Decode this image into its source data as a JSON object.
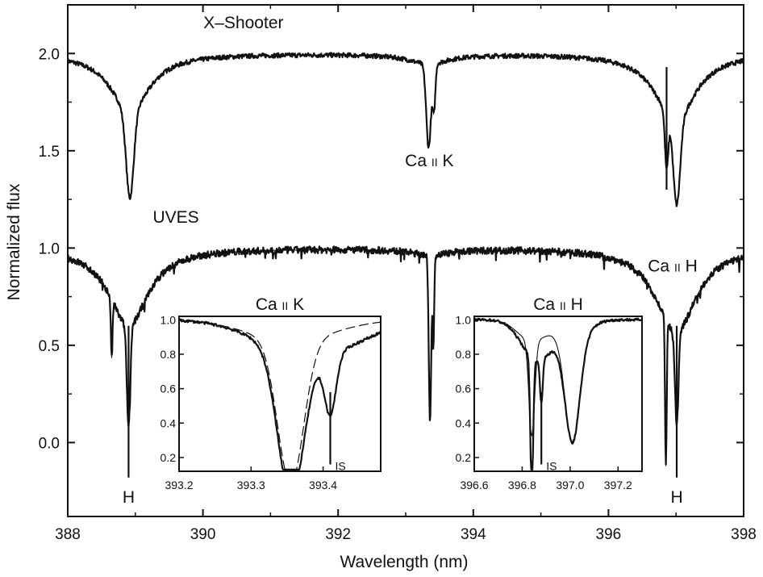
{
  "chart_data": {
    "type": "line",
    "xlabel": "Wavelength (nm)",
    "ylabel": "Normalized flux",
    "xlim": [
      388,
      398
    ],
    "ylim": [
      -0.38,
      2.25
    ],
    "xticks": [
      "388",
      "390",
      "392",
      "394",
      "396",
      "398"
    ],
    "yticks": [
      "0.0",
      "0.5",
      "1.0",
      "1.5",
      "2.0"
    ],
    "series": [
      {
        "name": "X–Shooter",
        "offset": 1.0,
        "noise": 0.012,
        "lines": [
          {
            "center": 388.92,
            "depth": 0.63,
            "width": 0.055,
            "wings": 0.3
          },
          {
            "center": 393.34,
            "depth": 0.45,
            "width": 0.035,
            "wings": 0.05
          },
          {
            "center": 393.42,
            "depth": 0.22,
            "width": 0.02,
            "wings": 0.0
          },
          {
            "center": 396.86,
            "depth": 0.3,
            "width": 0.025,
            "wings": 0.05
          },
          {
            "center": 397.01,
            "depth": 0.62,
            "width": 0.05,
            "wings": 0.3
          }
        ]
      },
      {
        "name": "UVES",
        "offset": 0.0,
        "noise": 0.018,
        "lines": [
          {
            "center": 388.9,
            "depth": 0.87,
            "width": 0.025,
            "wings": 0.4
          },
          {
            "center": 388.65,
            "depth": 0.3,
            "width": 0.012,
            "wings": 0.0
          },
          {
            "center": 393.36,
            "depth": 0.88,
            "width": 0.018,
            "wings": 0.03
          },
          {
            "center": 393.41,
            "depth": 0.45,
            "width": 0.012,
            "wings": 0.0
          },
          {
            "center": 396.85,
            "depth": 0.78,
            "width": 0.012,
            "wings": 0.04
          },
          {
            "center": 397.01,
            "depth": 0.8,
            "width": 0.025,
            "wings": 0.4
          }
        ]
      }
    ],
    "annotations": [
      {
        "text": "X–Shooter",
        "x": 390.6,
        "y": 2.13
      },
      {
        "text": "UVES",
        "x": 389.6,
        "y": 1.13
      },
      {
        "text": "Ca II K",
        "main": "Ca",
        "roman": "II",
        "suffix": "K",
        "x": 393.35,
        "y": 1.42
      },
      {
        "text": "Ca II H",
        "main": "Ca",
        "roman": "II",
        "suffix": "H",
        "x": 396.95,
        "y": 0.88
      },
      {
        "text": "H",
        "x": 388.9,
        "y": -0.31
      },
      {
        "text": "H",
        "x": 397.01,
        "y": -0.31
      }
    ],
    "markers": [
      {
        "x": 388.9,
        "y1": 0.6,
        "y2": -0.18
      },
      {
        "x": 396.86,
        "y1": 1.93,
        "y2": 1.3
      },
      {
        "x": 397.01,
        "y1": 0.6,
        "y2": -0.18
      }
    ],
    "insets": [
      {
        "title": "Ca II K",
        "title_main": "Ca",
        "title_roman": "II",
        "title_suffix": "K",
        "xlim": [
          393.2,
          393.48
        ],
        "ylim": [
          0.12,
          1.02
        ],
        "xticks": [
          "393.2",
          "393.3",
          "393.4"
        ],
        "yticks": [
          "0.2",
          "0.4",
          "0.6",
          "0.8",
          "1.0"
        ],
        "lines": [
          {
            "center": 393.355,
            "depth": 0.83,
            "width": 0.018
          },
          {
            "center": 393.41,
            "depth": 0.35,
            "width": 0.008
          }
        ],
        "model_lines": [
          {
            "center": 393.355,
            "depth": 0.83,
            "width": 0.018
          }
        ],
        "is_label": "IS",
        "is_x": 393.41
      },
      {
        "title": "Ca II H",
        "title_main": "Ca",
        "title_roman": "II",
        "title_suffix": "H",
        "xlim": [
          396.6,
          397.3
        ],
        "ylim": [
          0.12,
          1.02
        ],
        "xticks": [
          "396.6",
          "396.8",
          "397.0",
          "397.2"
        ],
        "yticks": [
          "0.2",
          "0.4",
          "0.6",
          "0.8",
          "1.0"
        ],
        "lines": [
          {
            "center": 396.84,
            "depth": 0.78,
            "width": 0.006
          },
          {
            "center": 396.88,
            "depth": 0.25,
            "width": 0.006
          },
          {
            "center": 397.01,
            "depth": 0.58,
            "width": 0.03
          }
        ],
        "model_lines": [
          {
            "center": 396.84,
            "depth": 0.55,
            "width": 0.012
          },
          {
            "center": 397.01,
            "depth": 0.6,
            "width": 0.03
          }
        ],
        "is_label": "IS",
        "is_x": 396.88
      }
    ]
  }
}
